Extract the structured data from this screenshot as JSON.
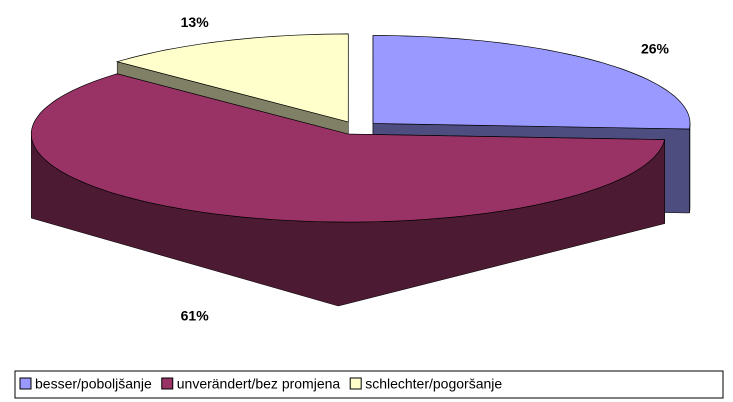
{
  "chart_data": {
    "type": "pie",
    "categories": [
      "besser/poboljšanje",
      "unverändert/bez promjena",
      "schlechter/pogoršanje"
    ],
    "values": [
      26,
      61,
      13
    ],
    "value_labels": [
      "26%",
      "61%",
      "13%"
    ],
    "colors": [
      "#9999ff",
      "#993366",
      "#ffffcc"
    ],
    "legend": "bottom"
  }
}
